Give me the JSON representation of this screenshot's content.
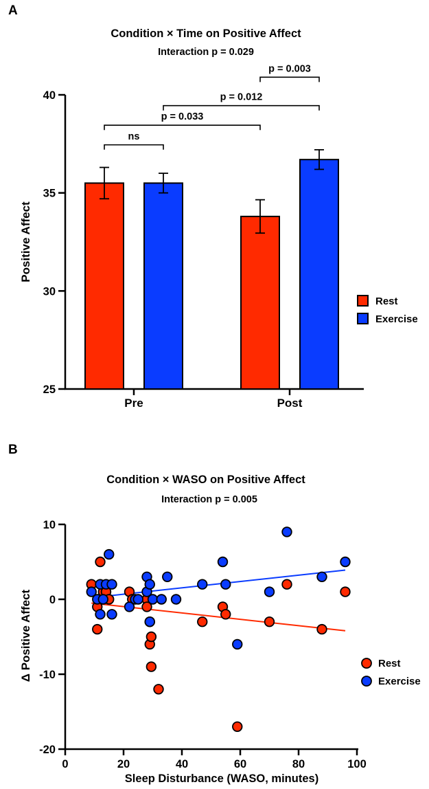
{
  "chart_data": [
    {
      "panel": "A",
      "type": "bar",
      "title": "Condition × Time on Positive Affect",
      "subtitle": "Interaction p = 0.029",
      "xlabel": "",
      "ylabel": "Positive Affect",
      "ylim": [
        25,
        40
      ],
      "yticks": [
        25,
        30,
        35,
        40
      ],
      "categories": [
        "Pre",
        "Post"
      ],
      "series": [
        {
          "name": "Rest",
          "color": "#ff2a00",
          "values": [
            35.5,
            33.8
          ],
          "errors": [
            0.8,
            0.85
          ]
        },
        {
          "name": "Exercise",
          "color": "#0a3cff",
          "values": [
            35.5,
            36.7
          ],
          "errors": [
            0.5,
            0.5
          ]
        }
      ],
      "legend": [
        {
          "label": "Rest",
          "color": "#ff2a00"
        },
        {
          "label": "Exercise",
          "color": "#0a3cff"
        }
      ],
      "comparisons": [
        {
          "label": "ns",
          "from": [
            0,
            0
          ],
          "to": [
            0,
            1
          ],
          "level": 37.45
        },
        {
          "label": "p = 0.033",
          "from": [
            0,
            0
          ],
          "to": [
            1,
            0
          ],
          "level": 38.45
        },
        {
          "label": "p = 0.012",
          "from": [
            0,
            1
          ],
          "to": [
            1,
            1
          ],
          "level": 39.45
        },
        {
          "label": "p = 0.003",
          "from": [
            1,
            0
          ],
          "to": [
            1,
            1
          ],
          "level": 40.9
        }
      ]
    },
    {
      "panel": "B",
      "type": "scatter",
      "title": "Condition × WASO on Positive Affect",
      "subtitle": "Interaction p = 0.005",
      "xlabel": "Sleep Disturbance (WASO, minutes)",
      "ylabel": "Δ Positive Affect",
      "xlim": [
        0,
        100
      ],
      "ylim": [
        -20,
        10
      ],
      "xticks": [
        0,
        20,
        40,
        60,
        80,
        100
      ],
      "yticks": [
        -20,
        -10,
        0,
        10
      ],
      "series": [
        {
          "name": "Rest",
          "color": "#ff2a00",
          "points": [
            [
              9,
              2
            ],
            [
              11,
              -1
            ],
            [
              11,
              -4
            ],
            [
              12,
              5
            ],
            [
              13,
              1
            ],
            [
              14,
              1
            ],
            [
              15,
              0
            ],
            [
              22,
              1
            ],
            [
              23,
              0
            ],
            [
              28,
              0
            ],
            [
              28,
              -1
            ],
            [
              29,
              -3
            ],
            [
              29,
              -6
            ],
            [
              29.5,
              -5
            ],
            [
              29.5,
              -9
            ],
            [
              32,
              -12
            ],
            [
              47,
              -3
            ],
            [
              54,
              -1
            ],
            [
              55,
              -2
            ],
            [
              59,
              -17
            ],
            [
              70,
              -3
            ],
            [
              76,
              2
            ],
            [
              88,
              -4
            ],
            [
              96,
              1
            ]
          ],
          "fit": [
            [
              9,
              -0.5
            ],
            [
              96,
              -4.2
            ]
          ]
        },
        {
          "name": "Exercise",
          "color": "#0a3cff",
          "points": [
            [
              9,
              1
            ],
            [
              11,
              0
            ],
            [
              12,
              -2
            ],
            [
              12,
              2
            ],
            [
              13,
              0
            ],
            [
              14,
              2
            ],
            [
              15,
              6
            ],
            [
              16,
              -2
            ],
            [
              16,
              2
            ],
            [
              22,
              -1
            ],
            [
              24,
              0
            ],
            [
              25,
              0
            ],
            [
              28,
              3
            ],
            [
              28,
              1
            ],
            [
              29,
              2
            ],
            [
              29,
              -3
            ],
            [
              30,
              0
            ],
            [
              33,
              0
            ],
            [
              35,
              3
            ],
            [
              38,
              0
            ],
            [
              47,
              2
            ],
            [
              54,
              5
            ],
            [
              55,
              2
            ],
            [
              59,
              -6
            ],
            [
              70,
              1
            ],
            [
              76,
              9
            ],
            [
              88,
              3
            ],
            [
              96,
              5
            ]
          ],
          "fit": [
            [
              11,
              0.3
            ],
            [
              96,
              3.9
            ]
          ]
        }
      ],
      "legend": [
        {
          "label": "Rest",
          "color": "#ff2a00"
        },
        {
          "label": "Exercise",
          "color": "#0a3cff"
        }
      ]
    }
  ],
  "panels": {
    "a": {
      "letter": "A",
      "title": "Condition × Time on Positive Affect",
      "subtitle": "Interaction p = 0.029",
      "ylabel": "Positive Affect",
      "legend_rest": "Rest",
      "legend_exercise": "Exercise"
    },
    "b": {
      "letter": "B",
      "title": "Condition × WASO on Positive Affect",
      "subtitle": "Interaction p = 0.005",
      "ylabel": "Δ Positive Affect",
      "xlabel": "Sleep Disturbance (WASO, minutes)",
      "legend_rest": "Rest",
      "legend_exercise": "Exercise"
    }
  }
}
